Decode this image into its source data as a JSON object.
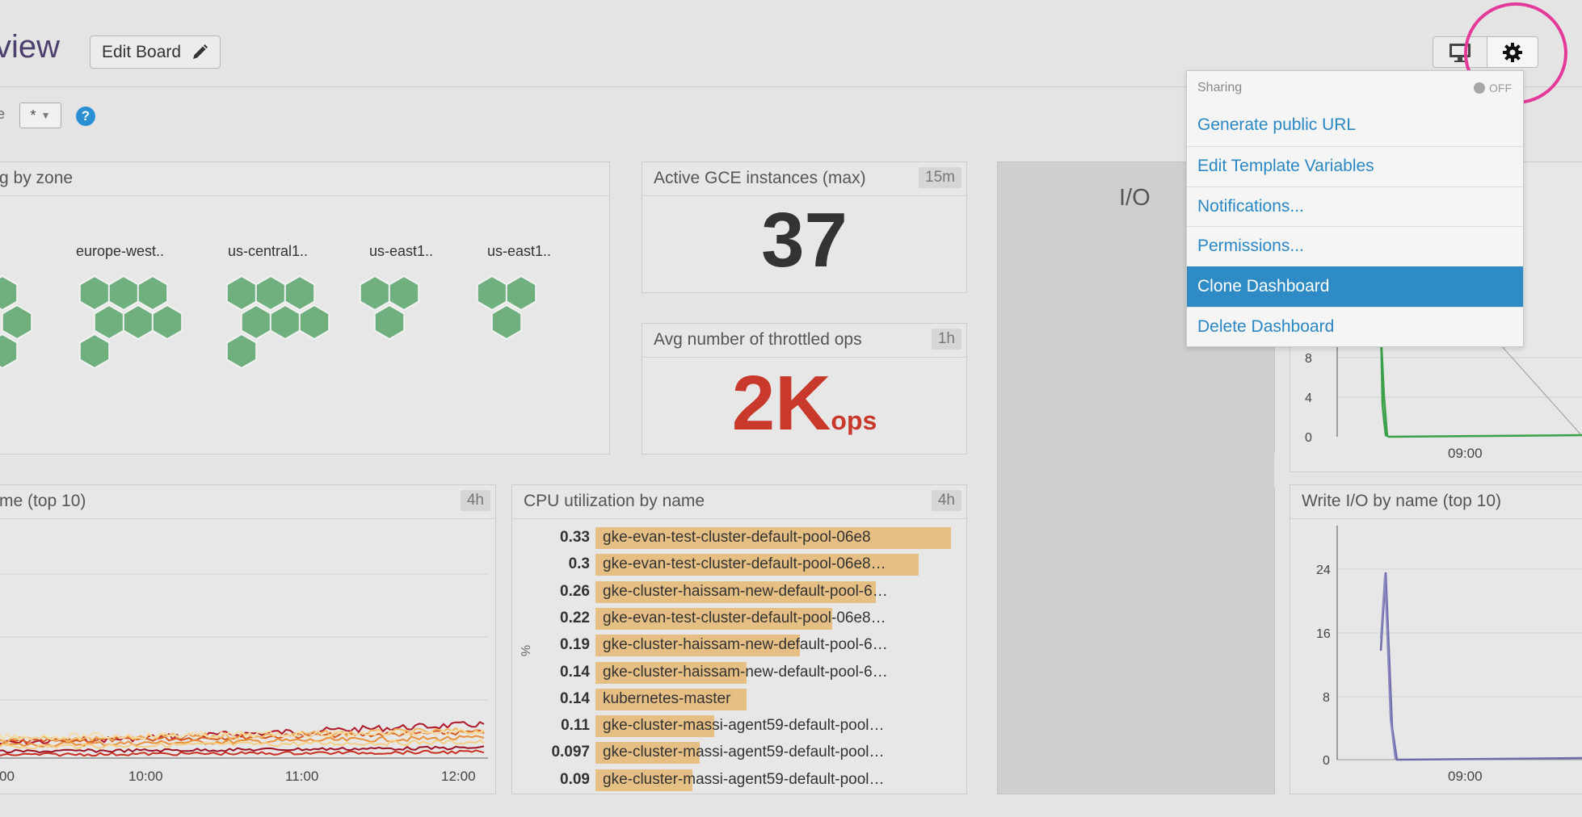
{
  "header": {
    "title": "view",
    "edit_board_label": "Edit Board"
  },
  "template": {
    "label": "e",
    "select_value": "*",
    "help_symbol": "?"
  },
  "widgets": {
    "hostmap": {
      "title": "g by zone",
      "zones": [
        "europe-west..",
        "us-central1..",
        "us-east1..",
        "us-east1.."
      ],
      "hex_color": "#70b07f"
    },
    "gce": {
      "title": "Active GCE instances (max)",
      "timeframe": "15m",
      "value": "37"
    },
    "throttled": {
      "title": "Avg number of throttled ops",
      "timeframe": "1h",
      "value": "2K",
      "unit": "ops",
      "color": "#c9392b"
    },
    "io": {
      "title": "I/O"
    },
    "read_io": {
      "y_ticks": [
        "8",
        "4",
        "0"
      ],
      "x_ticks": [
        "09:00"
      ]
    },
    "timeseries": {
      "title": "me (top 10)",
      "timeframe": "4h",
      "x_ticks": [
        "00",
        "10:00",
        "11:00",
        "12:00"
      ]
    },
    "cpu": {
      "title": "CPU utilization by name",
      "timeframe": "4h",
      "axis_label": "%",
      "rows": [
        {
          "value": "0.33",
          "name": "gke-evan-test-cluster-default-pool-06e8",
          "frac": 0.33
        },
        {
          "value": "0.3",
          "name": "gke-evan-test-cluster-default-pool-06e8…",
          "frac": 0.3
        },
        {
          "value": "0.26",
          "name": "gke-cluster-haissam-new-default-pool-6…",
          "frac": 0.26
        },
        {
          "value": "0.22",
          "name": "gke-evan-test-cluster-default-pool-06e8…",
          "frac": 0.22
        },
        {
          "value": "0.19",
          "name": "gke-cluster-haissam-new-default-pool-6…",
          "frac": 0.19
        },
        {
          "value": "0.14",
          "name": "gke-cluster-haissam-new-default-pool-6…",
          "frac": 0.14
        },
        {
          "value": "0.14",
          "name": "kubernetes-master",
          "frac": 0.14
        },
        {
          "value": "0.11",
          "name": "gke-cluster-massi-agent59-default-pool…",
          "frac": 0.11
        },
        {
          "value": "0.097",
          "name": "gke-cluster-massi-agent59-default-pool…",
          "frac": 0.097
        },
        {
          "value": "0.09",
          "name": "gke-cluster-massi-agent59-default-pool…",
          "frac": 0.09
        }
      ]
    },
    "write_io": {
      "title": "Write I/O by name (top 10)",
      "y_ticks": [
        "24",
        "16",
        "8",
        "0"
      ],
      "x_ticks": [
        "09:00"
      ]
    }
  },
  "menu": {
    "header": "Sharing",
    "toggle_label": "OFF",
    "items": [
      {
        "label": "Generate public URL",
        "active": false
      },
      {
        "label": "Edit Template Variables",
        "active": false
      },
      {
        "label": "Notifications...",
        "active": false
      },
      {
        "label": "Permissions...",
        "active": false
      },
      {
        "label": "Clone Dashboard",
        "active": true
      },
      {
        "label": "Delete Dashboard",
        "active": false
      }
    ]
  }
}
